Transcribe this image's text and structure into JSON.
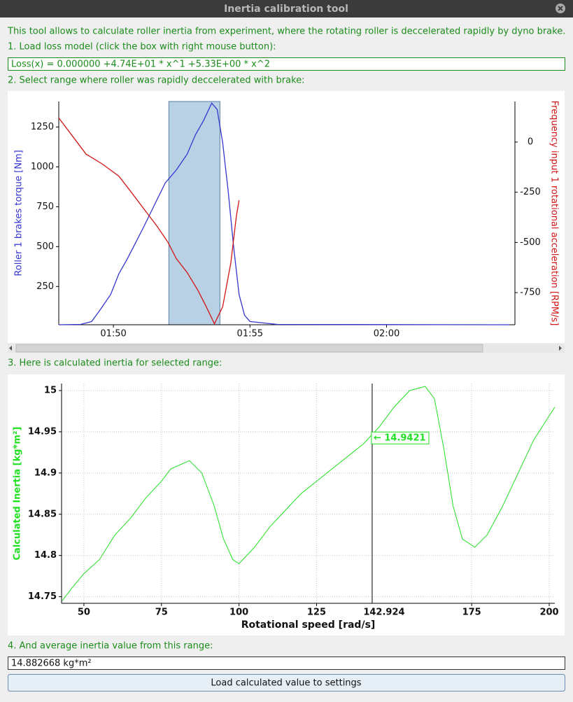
{
  "window": {
    "title": "Inertia calibration tool"
  },
  "steps": [
    "This tool allows to calculate roller inertia from experiment, where the rotating roller is deccelerated rapidly by dyno brake.",
    "1. Load loss model (click the box with right mouse button):",
    "2. Select range where roller was rapidly deccelerated with brake:",
    "3. Here is calculated inertia for selected range:",
    "4. And average inertia value from this range:"
  ],
  "loss_model": "Loss(x) = 0.000000 +4.74E+01 * x^1 +5.33E+00 * x^2",
  "average": "14.882668 kg*m²",
  "button": "Load calculated value to settings",
  "chart_data": [
    {
      "type": "line",
      "ylabel": "Roller 1 brakes torque [Nm]",
      "y2label": "Frequency input 1 rotational acceleration [RPM/s]",
      "xlim": [
        108,
        124.7
      ],
      "xticks": [
        {
          "value": 110,
          "label": "01:50"
        },
        {
          "value": 115,
          "label": "01:55"
        },
        {
          "value": 120,
          "label": "02:00"
        }
      ],
      "ylim": [
        10,
        1410
      ],
      "yticks": [
        250,
        500,
        750,
        1000,
        1250
      ],
      "y2lim": [
        -910,
        202
      ],
      "y2ticks": [
        0,
        -250,
        -500,
        -750
      ],
      "grid": false,
      "selection": [
        112.03,
        113.9
      ],
      "series": [
        {
          "name": "Roller 1 brakes torque",
          "color": "#3535d0",
          "x": [
            108,
            108.8,
            109.2,
            109.5,
            109.9,
            110.2,
            110.5,
            110.8,
            111.1,
            111.5,
            111.9,
            112.3,
            112.7,
            113.0,
            113.3,
            113.6,
            113.8,
            114.0,
            114.2,
            114.4,
            114.6,
            114.8,
            115.0,
            116,
            124.5
          ],
          "values": [
            10,
            12,
            30,
            100,
            200,
            330,
            420,
            520,
            620,
            760,
            900,
            980,
            1080,
            1200,
            1290,
            1400,
            1360,
            1150,
            850,
            500,
            200,
            70,
            30,
            12,
            10
          ]
        },
        {
          "name": "Frequency input 1 rotational acceleration",
          "color": "#d01515",
          "axis": "y2",
          "x": [
            108,
            108.5,
            109,
            109.6,
            110.2,
            110.6,
            111.1,
            111.6,
            112.0,
            112.3,
            112.7,
            113.1,
            113.4,
            113.7,
            114.0,
            114.3,
            114.5,
            114.6
          ],
          "values": [
            120,
            30,
            -60,
            -110,
            -170,
            -240,
            -330,
            -420,
            -500,
            -580,
            -650,
            -740,
            -820,
            -905,
            -820,
            -600,
            -370,
            -290
          ]
        }
      ]
    },
    {
      "type": "line",
      "xlabel": "Rotational speed [rad/s]",
      "ylabel": "Calculated Inertia [kg*m²]",
      "xlim": [
        42.8,
        201.8
      ],
      "xticks": [
        50,
        75,
        100,
        125,
        175,
        200
      ],
      "ylim": [
        14.742,
        15.0085
      ],
      "yticks": [
        14.75,
        14.8,
        14.85,
        14.9,
        14.95,
        15
      ],
      "grid": true,
      "cursor": {
        "x": 142.924,
        "value": 14.9421,
        "label": "← 14.9421"
      },
      "series": [
        {
          "name": "Calculated Inertia",
          "color": "#22e022",
          "x": [
            43,
            46,
            50,
            55,
            60,
            65,
            70,
            75,
            78,
            84,
            88,
            92,
            95,
            98,
            100,
            105,
            110,
            115,
            120,
            125,
            130,
            135,
            140,
            145,
            150,
            155,
            160,
            163,
            166,
            169,
            172,
            176,
            180,
            185,
            190,
            195,
            201.8
          ],
          "values": [
            14.745,
            14.76,
            14.778,
            14.795,
            14.825,
            14.845,
            14.87,
            14.89,
            14.905,
            14.915,
            14.9,
            14.86,
            14.82,
            14.795,
            14.79,
            14.81,
            14.835,
            14.855,
            14.875,
            14.89,
            14.905,
            14.92,
            14.935,
            14.955,
            14.98,
            15.0,
            15.005,
            14.99,
            14.93,
            14.86,
            14.82,
            14.81,
            14.825,
            14.86,
            14.9,
            14.94,
            14.98
          ]
        }
      ]
    }
  ]
}
